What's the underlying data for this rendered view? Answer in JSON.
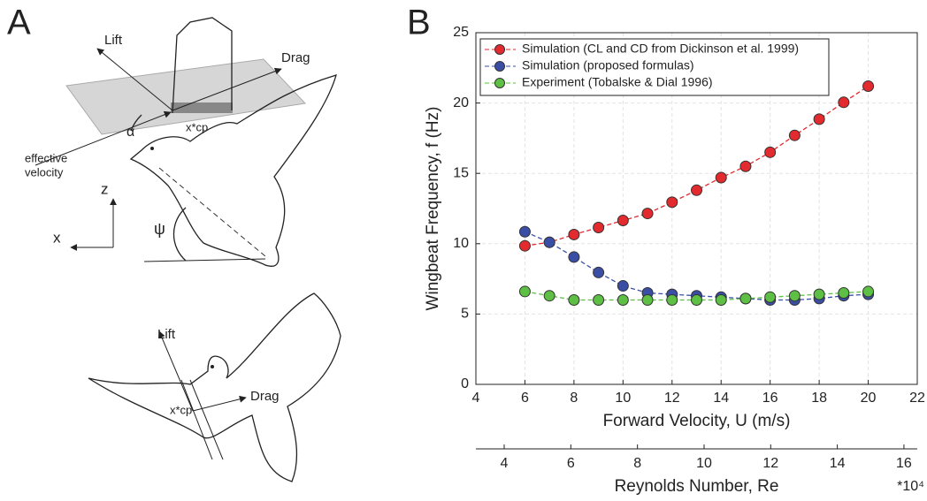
{
  "panel_labels": [
    "A",
    "B"
  ],
  "diagram": {
    "top": {
      "lift": "Lift",
      "drag": "Drag",
      "alpha": "α",
      "xcp": "x*cp",
      "effective_velocity": [
        "effective",
        "velocity"
      ],
      "z": "z",
      "x": "x",
      "psi": "ψ"
    },
    "bottom": {
      "lift": "Lift",
      "drag": "Drag",
      "xcp": "x*cp"
    }
  },
  "chart_data": {
    "type": "line",
    "x": [
      6,
      7,
      8,
      9,
      10,
      11,
      12,
      13,
      14,
      15,
      16,
      17,
      18,
      19,
      20
    ],
    "series": [
      {
        "name": "Simulation (CL and CD from Dickinson et al. 1999)",
        "color": "#e32a2f",
        "values": [
          9.85,
          10.1,
          10.65,
          11.15,
          11.65,
          12.15,
          12.95,
          13.8,
          14.7,
          15.5,
          16.5,
          17.7,
          18.85,
          20.05,
          21.2
        ]
      },
      {
        "name": "Simulation (proposed formulas)",
        "color": "#3b4ea6",
        "values": [
          10.85,
          10.1,
          9.05,
          7.95,
          7.0,
          6.5,
          6.4,
          6.3,
          6.2,
          6.1,
          6.0,
          6.0,
          6.1,
          6.3,
          6.4
        ]
      },
      {
        "name": "Experiment (Tobalske & Dial 1996)",
        "color": "#5dbf43",
        "values": [
          6.6,
          6.3,
          6.0,
          6.0,
          6.0,
          6.0,
          6.0,
          6.0,
          6.0,
          6.1,
          6.2,
          6.3,
          6.4,
          6.5,
          6.6
        ]
      }
    ],
    "xlim": [
      4,
      22
    ],
    "xticks": [
      4,
      6,
      8,
      10,
      12,
      14,
      16,
      18,
      20,
      22
    ],
    "ylim": [
      0,
      25
    ],
    "yticks": [
      0,
      5,
      10,
      15,
      20,
      25
    ],
    "xlabel": "Forward Velocity, U (m/s)",
    "ylabel": "Wingbeat Frequency, f (Hz)",
    "grid": true,
    "legend": "upper left",
    "secondary_x": {
      "label": "Reynolds Number, Re",
      "xlim": [
        3.15,
        16.4
      ],
      "xticks": [
        4,
        6,
        8,
        10,
        12,
        14,
        16
      ],
      "multiplier": "*10⁴"
    }
  }
}
